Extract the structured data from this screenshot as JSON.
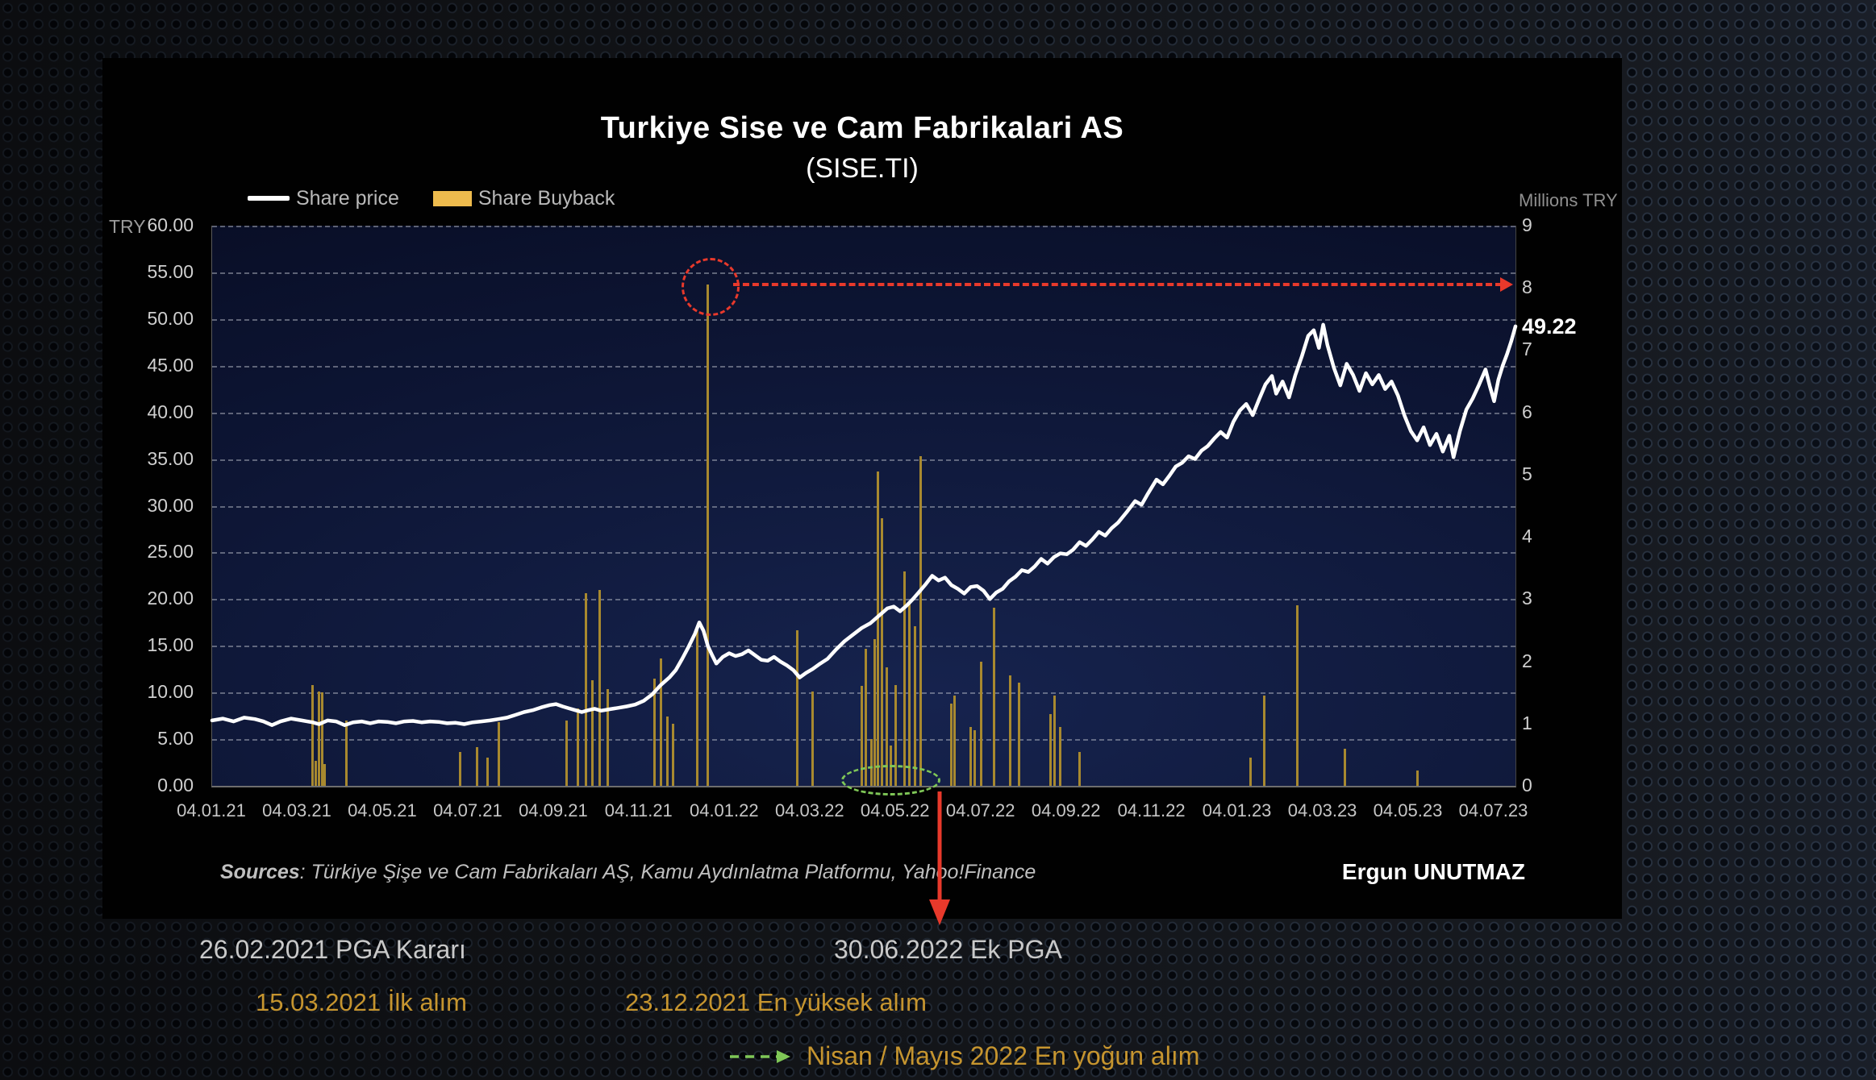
{
  "credit": "Ergun UNUTMAZ",
  "sources": {
    "prefix": "Sources",
    "text": ": Türkiye Şişe ve Cam Fabrikaları AŞ, Kamu Aydınlatma Platformu, Yahoo!Finance"
  },
  "events": {
    "pga_decision": "26.02.2021 PGA Kararı",
    "ek_pga": "30.06.2022 Ek PGA",
    "first_purchase": "15.03.2021 İlk alım",
    "highest_purchase": "23.12.2021 En yüksek alım",
    "most_intense": "Nisan / Mayıs 2022 En yoğun alım"
  },
  "colors": {
    "price_line": "#ffffff",
    "buyback_bar": "#a8892f",
    "legend_bar_swatch": "#eebb4d",
    "annotation_red": "#e8392b",
    "annotation_green": "#7fc757",
    "event_orange": "#c6952f",
    "event_gray": "#c9c9c9"
  },
  "chart_data": {
    "type": "line+bar",
    "title": "Turkiye Sise ve Cam Fabrikalari AS",
    "subtitle": "(SISE.TI)",
    "legend": [
      {
        "label": "Share price",
        "type": "line",
        "color": "#ffffff"
      },
      {
        "label": "Share Buyback",
        "type": "bar",
        "color": "#eebb4d"
      }
    ],
    "left_axis": {
      "unit": "TRY",
      "min": 0,
      "max": 60,
      "step": 5,
      "ticks": [
        "60.00",
        "55.00",
        "50.00",
        "45.00",
        "40.00",
        "35.00",
        "30.00",
        "25.00",
        "20.00",
        "15.00",
        "10.00",
        "5.00",
        "0.00"
      ]
    },
    "right_axis": {
      "unit": "Millions TRY",
      "min": 0,
      "max": 9,
      "step": 1,
      "ticks": [
        "9",
        "8",
        "7",
        "6",
        "5",
        "4",
        "3",
        "2",
        "1",
        "0"
      ]
    },
    "x_axis": {
      "range_months": [
        0,
        30.5
      ],
      "ticks": [
        {
          "label": "04.01.21",
          "month": 0
        },
        {
          "label": "04.03.21",
          "month": 2
        },
        {
          "label": "04.05.21",
          "month": 4
        },
        {
          "label": "04.07.21",
          "month": 6
        },
        {
          "label": "04.09.21",
          "month": 8
        },
        {
          "label": "04.11.21",
          "month": 10
        },
        {
          "label": "04.01.22",
          "month": 12
        },
        {
          "label": "04.03.22",
          "month": 14
        },
        {
          "label": "04.05.22",
          "month": 16
        },
        {
          "label": "04.07.22",
          "month": 18
        },
        {
          "label": "04.09.22",
          "month": 20
        },
        {
          "label": "04.11.22",
          "month": 22
        },
        {
          "label": "04.01.23",
          "month": 24
        },
        {
          "label": "04.03.23",
          "month": 26
        },
        {
          "label": "04.05.23",
          "month": 28
        },
        {
          "label": "04.07.23",
          "month": 30
        }
      ]
    },
    "grid": "horizontal-dashed",
    "legend_position": "top-left",
    "last_price_label": "49.22",
    "last_price_value": 49.22,
    "price_series": [
      [
        0,
        7.0
      ],
      [
        0.25,
        7.2
      ],
      [
        0.5,
        6.9
      ],
      [
        0.75,
        7.3
      ],
      [
        1.0,
        7.15
      ],
      [
        1.2,
        6.9
      ],
      [
        1.4,
        6.5
      ],
      [
        1.6,
        6.9
      ],
      [
        1.85,
        7.2
      ],
      [
        2.1,
        7.0
      ],
      [
        2.35,
        6.8
      ],
      [
        2.5,
        6.6
      ],
      [
        2.7,
        7.0
      ],
      [
        2.9,
        6.9
      ],
      [
        3.1,
        6.5
      ],
      [
        3.3,
        6.8
      ],
      [
        3.5,
        6.9
      ],
      [
        3.7,
        6.7
      ],
      [
        3.9,
        6.9
      ],
      [
        4.1,
        6.85
      ],
      [
        4.3,
        6.7
      ],
      [
        4.5,
        6.9
      ],
      [
        4.7,
        6.95
      ],
      [
        4.9,
        6.8
      ],
      [
        5.1,
        6.9
      ],
      [
        5.3,
        6.85
      ],
      [
        5.5,
        6.7
      ],
      [
        5.7,
        6.75
      ],
      [
        5.9,
        6.6
      ],
      [
        6.1,
        6.8
      ],
      [
        6.3,
        6.9
      ],
      [
        6.5,
        7.0
      ],
      [
        6.7,
        7.15
      ],
      [
        6.9,
        7.3
      ],
      [
        7.1,
        7.6
      ],
      [
        7.3,
        7.9
      ],
      [
        7.5,
        8.1
      ],
      [
        7.7,
        8.4
      ],
      [
        7.9,
        8.65
      ],
      [
        8.05,
        8.75
      ],
      [
        8.2,
        8.5
      ],
      [
        8.35,
        8.3
      ],
      [
        8.5,
        8.1
      ],
      [
        8.65,
        7.9
      ],
      [
        8.8,
        8.1
      ],
      [
        8.95,
        8.25
      ],
      [
        9.1,
        8.05
      ],
      [
        9.3,
        8.2
      ],
      [
        9.5,
        8.35
      ],
      [
        9.7,
        8.5
      ],
      [
        9.9,
        8.7
      ],
      [
        10.1,
        9.1
      ],
      [
        10.3,
        9.8
      ],
      [
        10.5,
        10.8
      ],
      [
        10.7,
        11.6
      ],
      [
        10.85,
        12.4
      ],
      [
        11.0,
        13.6
      ],
      [
        11.15,
        14.9
      ],
      [
        11.3,
        16.3
      ],
      [
        11.4,
        17.5
      ],
      [
        11.5,
        16.6
      ],
      [
        11.6,
        15.0
      ],
      [
        11.7,
        14.0
      ],
      [
        11.8,
        13.1
      ],
      [
        11.95,
        13.8
      ],
      [
        12.1,
        14.2
      ],
      [
        12.25,
        13.9
      ],
      [
        12.4,
        14.1
      ],
      [
        12.55,
        14.5
      ],
      [
        12.7,
        14.0
      ],
      [
        12.85,
        13.5
      ],
      [
        13.0,
        13.4
      ],
      [
        13.15,
        13.8
      ],
      [
        13.3,
        13.3
      ],
      [
        13.45,
        12.9
      ],
      [
        13.6,
        12.4
      ],
      [
        13.75,
        11.6
      ],
      [
        13.9,
        12.1
      ],
      [
        14.05,
        12.5
      ],
      [
        14.2,
        13.0
      ],
      [
        14.4,
        13.6
      ],
      [
        14.6,
        14.6
      ],
      [
        14.8,
        15.5
      ],
      [
        15.0,
        16.2
      ],
      [
        15.2,
        16.9
      ],
      [
        15.4,
        17.4
      ],
      [
        15.6,
        18.2
      ],
      [
        15.8,
        19.0
      ],
      [
        15.95,
        19.2
      ],
      [
        16.1,
        18.7
      ],
      [
        16.25,
        19.3
      ],
      [
        16.4,
        20.0
      ],
      [
        16.55,
        20.8
      ],
      [
        16.7,
        21.6
      ],
      [
        16.85,
        22.5
      ],
      [
        17.0,
        22.0
      ],
      [
        17.15,
        22.3
      ],
      [
        17.3,
        21.5
      ],
      [
        17.45,
        21.1
      ],
      [
        17.6,
        20.6
      ],
      [
        17.75,
        21.3
      ],
      [
        17.9,
        21.4
      ],
      [
        18.05,
        20.9
      ],
      [
        18.2,
        20.0
      ],
      [
        18.35,
        20.7
      ],
      [
        18.5,
        21.1
      ],
      [
        18.65,
        21.9
      ],
      [
        18.8,
        22.4
      ],
      [
        18.95,
        23.1
      ],
      [
        19.1,
        22.9
      ],
      [
        19.25,
        23.5
      ],
      [
        19.4,
        24.3
      ],
      [
        19.55,
        23.8
      ],
      [
        19.7,
        24.5
      ],
      [
        19.85,
        24.9
      ],
      [
        20.0,
        24.8
      ],
      [
        20.15,
        25.3
      ],
      [
        20.3,
        26.1
      ],
      [
        20.45,
        25.7
      ],
      [
        20.6,
        26.4
      ],
      [
        20.75,
        27.2
      ],
      [
        20.9,
        26.8
      ],
      [
        21.05,
        27.6
      ],
      [
        21.2,
        28.2
      ],
      [
        21.4,
        29.3
      ],
      [
        21.6,
        30.5
      ],
      [
        21.75,
        30.1
      ],
      [
        21.9,
        31.3
      ],
      [
        22.1,
        32.8
      ],
      [
        22.25,
        32.3
      ],
      [
        22.4,
        33.2
      ],
      [
        22.55,
        34.2
      ],
      [
        22.7,
        34.6
      ],
      [
        22.85,
        35.3
      ],
      [
        23.0,
        35.0
      ],
      [
        23.15,
        35.9
      ],
      [
        23.3,
        36.4
      ],
      [
        23.45,
        37.2
      ],
      [
        23.6,
        37.9
      ],
      [
        23.75,
        37.3
      ],
      [
        23.9,
        39.0
      ],
      [
        24.05,
        40.2
      ],
      [
        24.2,
        40.9
      ],
      [
        24.35,
        39.7
      ],
      [
        24.5,
        41.4
      ],
      [
        24.65,
        43.0
      ],
      [
        24.8,
        43.9
      ],
      [
        24.9,
        42.0
      ],
      [
        25.05,
        43.3
      ],
      [
        25.2,
        41.6
      ],
      [
        25.35,
        44.0
      ],
      [
        25.5,
        46.0
      ],
      [
        25.65,
        48.2
      ],
      [
        25.78,
        48.8
      ],
      [
        25.9,
        46.9
      ],
      [
        26.0,
        49.4
      ],
      [
        26.1,
        47.2
      ],
      [
        26.25,
        44.8
      ],
      [
        26.4,
        42.9
      ],
      [
        26.55,
        45.2
      ],
      [
        26.7,
        44.0
      ],
      [
        26.85,
        42.3
      ],
      [
        27.0,
        44.2
      ],
      [
        27.15,
        43.0
      ],
      [
        27.3,
        44.0
      ],
      [
        27.45,
        42.5
      ],
      [
        27.6,
        43.3
      ],
      [
        27.75,
        41.8
      ],
      [
        27.9,
        39.7
      ],
      [
        28.05,
        38.0
      ],
      [
        28.2,
        37.0
      ],
      [
        28.35,
        38.4
      ],
      [
        28.5,
        36.5
      ],
      [
        28.65,
        37.7
      ],
      [
        28.8,
        35.8
      ],
      [
        28.95,
        37.5
      ],
      [
        29.05,
        35.2
      ],
      [
        29.2,
        38.0
      ],
      [
        29.35,
        40.3
      ],
      [
        29.5,
        41.5
      ],
      [
        29.65,
        43.0
      ],
      [
        29.8,
        44.6
      ],
      [
        29.9,
        42.8
      ],
      [
        30.0,
        41.2
      ],
      [
        30.1,
        43.5
      ],
      [
        30.2,
        45.0
      ],
      [
        30.3,
        46.2
      ],
      [
        30.4,
        47.6
      ],
      [
        30.5,
        49.22
      ]
    ],
    "buyback_bars": [
      [
        2.35,
        1.62
      ],
      [
        2.42,
        0.4
      ],
      [
        2.5,
        1.52
      ],
      [
        2.58,
        1.5
      ],
      [
        2.64,
        0.35
      ],
      [
        3.15,
        1.05
      ],
      [
        5.8,
        0.55
      ],
      [
        6.2,
        0.62
      ],
      [
        6.45,
        0.45
      ],
      [
        6.7,
        1.02
      ],
      [
        8.3,
        1.05
      ],
      [
        8.55,
        1.25
      ],
      [
        8.75,
        3.1
      ],
      [
        8.9,
        1.7
      ],
      [
        9.07,
        3.15
      ],
      [
        9.25,
        1.55
      ],
      [
        10.36,
        1.72
      ],
      [
        10.5,
        2.05
      ],
      [
        10.66,
        1.12
      ],
      [
        10.78,
        1.0
      ],
      [
        11.35,
        2.5
      ],
      [
        11.6,
        8.05
      ],
      [
        13.7,
        2.5
      ],
      [
        14.05,
        1.52
      ],
      [
        15.2,
        1.6
      ],
      [
        15.3,
        2.2
      ],
      [
        15.42,
        0.75
      ],
      [
        15.5,
        2.36
      ],
      [
        15.58,
        5.05
      ],
      [
        15.68,
        4.3
      ],
      [
        15.78,
        1.9
      ],
      [
        15.88,
        0.65
      ],
      [
        16.0,
        1.62
      ],
      [
        16.2,
        3.45
      ],
      [
        16.32,
        2.95
      ],
      [
        16.45,
        2.57
      ],
      [
        16.58,
        5.3
      ],
      [
        17.3,
        1.32
      ],
      [
        17.38,
        1.45
      ],
      [
        17.75,
        0.95
      ],
      [
        17.85,
        0.9
      ],
      [
        18.0,
        2.0
      ],
      [
        18.3,
        2.86
      ],
      [
        18.68,
        1.78
      ],
      [
        18.88,
        1.66
      ],
      [
        19.62,
        1.15
      ],
      [
        19.72,
        1.45
      ],
      [
        19.85,
        0.95
      ],
      [
        20.3,
        0.55
      ],
      [
        24.3,
        0.45
      ],
      [
        24.62,
        1.45
      ],
      [
        25.4,
        2.9
      ],
      [
        26.5,
        0.6
      ],
      [
        28.2,
        0.25
      ]
    ],
    "annotations": {
      "peak_circle": {
        "month": 11.6,
        "millions": 8.05
      },
      "dashed_level_arrow": {
        "from_month": 12.2,
        "to_month": 30.4,
        "millions": 8.05
      },
      "cluster_ellipse": {
        "center_month": 15.83,
        "half_span_months": 1.1
      },
      "event_arrow_month": 17.05
    }
  }
}
